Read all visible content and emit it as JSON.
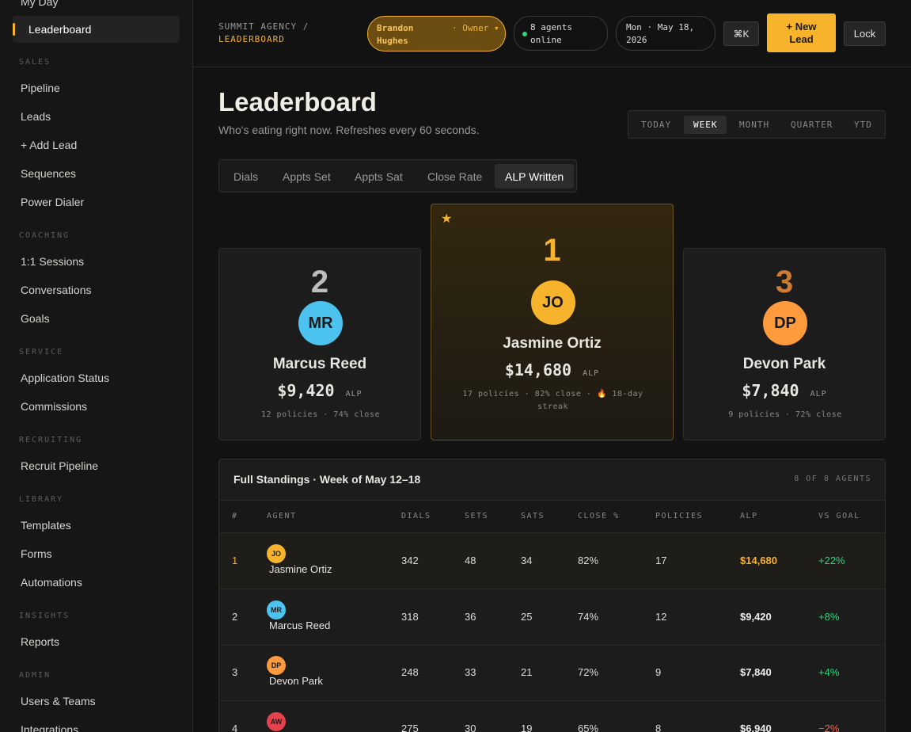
{
  "sidebar": {
    "top": [
      "My Day",
      "Leaderboard"
    ],
    "sections": [
      {
        "title": "SALES",
        "items": [
          "Pipeline",
          "Leads",
          "+ Add Lead",
          "Sequences",
          "Power Dialer"
        ]
      },
      {
        "title": "COACHING",
        "items": [
          "1:1 Sessions",
          "Conversations",
          "Goals"
        ]
      },
      {
        "title": "SERVICE",
        "items": [
          "Application Status",
          "Commissions"
        ]
      },
      {
        "title": "RECRUITING",
        "items": [
          "Recruit Pipeline"
        ]
      },
      {
        "title": "LIBRARY",
        "items": [
          "Templates",
          "Forms",
          "Automations"
        ]
      },
      {
        "title": "INSIGHTS",
        "items": [
          "Reports"
        ]
      },
      {
        "title": "ADMIN",
        "items": [
          "Users & Teams",
          "Integrations"
        ]
      }
    ]
  },
  "header": {
    "breadcrumb": "SUMMIT AGENCY /",
    "page": "LEADERBOARD",
    "user": "Brandon Hughes",
    "role": "· Owner ▾",
    "status": "8 agents online",
    "date": "Mon · May 18, 2026",
    "shortcut": "⌘K",
    "new_lead": "+ New Lead",
    "lock": "Lock"
  },
  "page": {
    "title": "Leaderboard",
    "subtitle": "Who's eating right now. Refreshes every 60 seconds.",
    "periods": [
      "TODAY",
      "WEEK",
      "MONTH",
      "QUARTER",
      "YTD"
    ],
    "metrics": [
      "Dials",
      "Appts Set",
      "Appts Sat",
      "Close Rate",
      "ALP Written"
    ]
  },
  "podium": [
    {
      "rank": "2",
      "initials": "MR",
      "name": "Marcus Reed",
      "amount": "$9,420",
      "unit": "ALP",
      "meta": "12 policies · 74% close"
    },
    {
      "badge": "★",
      "rank": "1",
      "initials": "JO",
      "name": "Jasmine Ortiz",
      "amount": "$14,680",
      "unit": "ALP",
      "meta": "17 policies · 82% close · 🔥 18-day streak"
    },
    {
      "rank": "3",
      "initials": "DP",
      "name": "Devon Park",
      "amount": "$7,840",
      "unit": "ALP",
      "meta": "9 policies · 72% close"
    }
  ],
  "standings": {
    "title": "Full Standings · Week of May 12–18",
    "count": "8 OF 8 AGENTS",
    "columns": [
      "#",
      "AGENT",
      "DIALS",
      "SETS",
      "SATS",
      "CLOSE %",
      "POLICIES",
      "ALP",
      "VS GOAL"
    ],
    "rows": [
      {
        "rank": "1",
        "initials": "JO",
        "name": "Jasmine Ortiz",
        "cells": [
          "342",
          "48",
          "34",
          "82%",
          "17",
          "$14,680",
          "+22%"
        ]
      },
      {
        "rank": "2",
        "initials": "MR",
        "name": "Marcus Reed",
        "cells": [
          "318",
          "36",
          "25",
          "74%",
          "12",
          "$9,420",
          "+8%"
        ]
      },
      {
        "rank": "3",
        "initials": "DP",
        "name": "Devon Park",
        "cells": [
          "248",
          "33",
          "21",
          "72%",
          "9",
          "$7,840",
          "+4%"
        ]
      },
      {
        "rank": "4",
        "initials": "AW",
        "cells": [
          "275",
          "30",
          "19",
          "65%",
          "8",
          "$6,940",
          "−2%"
        ]
      }
    ]
  }
}
